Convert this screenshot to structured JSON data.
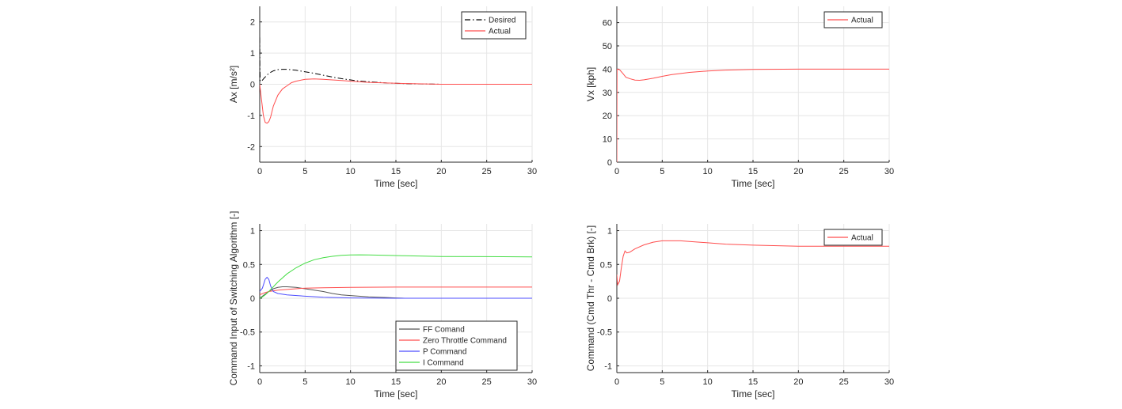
{
  "chart_data": [
    {
      "type": "line",
      "xlabel": "Time [sec]",
      "ylabel": "Ax [m/s²]",
      "xlim": [
        0,
        30
      ],
      "ylim": [
        -2.5,
        2.5
      ],
      "xticks": [
        0,
        5,
        10,
        15,
        20,
        25,
        30
      ],
      "yticks": [
        -2,
        -1,
        0,
        1,
        2
      ],
      "grid": true,
      "legend": "top-right",
      "colors": [
        "#000000",
        "#ff4d4d"
      ],
      "series": [
        {
          "name": "Desired",
          "style": "dash-dot",
          "x": [
            0,
            0.02,
            0.05,
            0.2,
            0.5,
            1,
            1.5,
            2,
            2.5,
            3,
            4,
            5,
            6,
            7,
            8,
            9,
            10,
            11,
            12,
            13,
            14,
            15,
            16,
            17,
            18,
            19,
            20,
            22,
            25,
            28,
            30
          ],
          "y": [
            1.5,
            0.6,
            0.1,
            0.1,
            0.2,
            0.35,
            0.43,
            0.47,
            0.48,
            0.48,
            0.45,
            0.4,
            0.35,
            0.29,
            0.23,
            0.18,
            0.14,
            0.1,
            0.08,
            0.06,
            0.04,
            0.03,
            0.02,
            0.015,
            0.01,
            0.005,
            0.0,
            0.0,
            0.0,
            0.0,
            0.0
          ]
        },
        {
          "name": "Actual",
          "style": "solid",
          "x": [
            0,
            0.2,
            0.4,
            0.6,
            0.8,
            1.0,
            1.2,
            1.5,
            2.0,
            2.5,
            3,
            3.5,
            4,
            5,
            6,
            7,
            8,
            9,
            10,
            12,
            15,
            20,
            25,
            30
          ],
          "y": [
            0.0,
            -0.5,
            -1.0,
            -1.22,
            -1.25,
            -1.2,
            -1.05,
            -0.7,
            -0.35,
            -0.15,
            -0.05,
            0.05,
            0.1,
            0.16,
            0.17,
            0.16,
            0.14,
            0.12,
            0.1,
            0.06,
            0.03,
            0.0,
            0.0,
            0.0
          ]
        }
      ]
    },
    {
      "type": "line",
      "xlabel": "Time [sec]",
      "ylabel": "Vx [kph]",
      "xlim": [
        0,
        30
      ],
      "ylim": [
        0,
        67
      ],
      "xticks": [
        0,
        5,
        10,
        15,
        20,
        25,
        30
      ],
      "yticks": [
        0,
        10,
        20,
        30,
        40,
        50,
        60
      ],
      "grid": true,
      "legend": "top-right",
      "colors": [
        "#ff4d4d"
      ],
      "series": [
        {
          "name": "Actual",
          "style": "solid",
          "x": [
            0,
            0.01,
            0.03,
            0.3,
            0.7,
            1,
            1.5,
            2,
            2.5,
            3,
            4,
            5,
            6,
            8,
            10,
            12,
            15,
            20,
            25,
            30
          ],
          "y": [
            0,
            20,
            40,
            39.8,
            38,
            36.5,
            35.8,
            35.3,
            35.2,
            35.4,
            36.1,
            36.9,
            37.6,
            38.6,
            39.2,
            39.6,
            39.9,
            40,
            40,
            40
          ]
        }
      ]
    },
    {
      "type": "line",
      "xlabel": "Time [sec]",
      "ylabel": "Command Input of Switching Algorithm [-]",
      "xlim": [
        0,
        30
      ],
      "ylim": [
        -1.1,
        1.1
      ],
      "xticks": [
        0,
        5,
        10,
        15,
        20,
        25,
        30
      ],
      "yticks": [
        -1,
        -0.5,
        0,
        0.5,
        1
      ],
      "grid": true,
      "legend": "bottom-right",
      "colors": [
        "#555555",
        "#ff4d4d",
        "#4d4dff",
        "#44dd44"
      ],
      "series": [
        {
          "name": "FF Comand",
          "style": "solid",
          "x": [
            0,
            0.5,
            1,
            1.5,
            2,
            2.5,
            3,
            4,
            5,
            6,
            7,
            8,
            9,
            10,
            12,
            14,
            15,
            16,
            20,
            25,
            30
          ],
          "y": [
            0.0,
            0.05,
            0.1,
            0.14,
            0.16,
            0.17,
            0.17,
            0.16,
            0.14,
            0.12,
            0.1,
            0.07,
            0.05,
            0.04,
            0.02,
            0.01,
            0.005,
            0.0,
            0.0,
            0.0,
            0.0
          ]
        },
        {
          "name": "Zero Throttle Command",
          "style": "solid",
          "x": [
            0,
            0.5,
            1,
            2,
            3,
            4,
            5,
            7,
            10,
            15,
            20,
            25,
            30
          ],
          "y": [
            0.05,
            0.08,
            0.1,
            0.12,
            0.13,
            0.14,
            0.15,
            0.155,
            0.16,
            0.165,
            0.165,
            0.165,
            0.165
          ]
        },
        {
          "name": "P Command",
          "style": "solid",
          "x": [
            0,
            0.3,
            0.6,
            0.8,
            1.0,
            1.2,
            1.5,
            2,
            3,
            5,
            7,
            10,
            15,
            20,
            25,
            30
          ],
          "y": [
            0.1,
            0.15,
            0.28,
            0.31,
            0.28,
            0.18,
            0.1,
            0.07,
            0.05,
            0.03,
            0.015,
            0.005,
            0.0,
            0.0,
            0.0,
            0.0
          ]
        },
        {
          "name": "I Command",
          "style": "solid",
          "x": [
            0,
            0.3,
            0.6,
            1,
            1.5,
            2,
            3,
            4,
            5,
            6,
            7,
            8,
            9,
            10,
            11,
            12,
            14,
            16,
            18,
            20,
            25,
            30
          ],
          "y": [
            0.0,
            0.02,
            0.05,
            0.1,
            0.17,
            0.24,
            0.36,
            0.45,
            0.52,
            0.57,
            0.6,
            0.62,
            0.635,
            0.64,
            0.642,
            0.64,
            0.635,
            0.628,
            0.622,
            0.618,
            0.615,
            0.612
          ]
        }
      ]
    },
    {
      "type": "line",
      "xlabel": "Time [sec]",
      "ylabel": "Command (Cmd Thr - Cmd Brk) [-]",
      "xlim": [
        0,
        30
      ],
      "ylim": [
        -1.1,
        1.1
      ],
      "xticks": [
        0,
        5,
        10,
        15,
        20,
        25,
        30
      ],
      "yticks": [
        -1,
        -0.5,
        0,
        0.5,
        1
      ],
      "grid": true,
      "legend": "top-right",
      "colors": [
        "#ff4d4d"
      ],
      "series": [
        {
          "name": "Actual",
          "style": "solid",
          "x": [
            0,
            0.1,
            0.3,
            0.5,
            0.7,
            0.9,
            1.1,
            1.4,
            2,
            3,
            4,
            5,
            6,
            7,
            8,
            10,
            12,
            15,
            20,
            25,
            30
          ],
          "y": [
            0.35,
            0.2,
            0.25,
            0.45,
            0.62,
            0.7,
            0.67,
            0.68,
            0.73,
            0.79,
            0.83,
            0.85,
            0.85,
            0.85,
            0.84,
            0.82,
            0.8,
            0.785,
            0.77,
            0.77,
            0.77
          ]
        }
      ]
    }
  ]
}
